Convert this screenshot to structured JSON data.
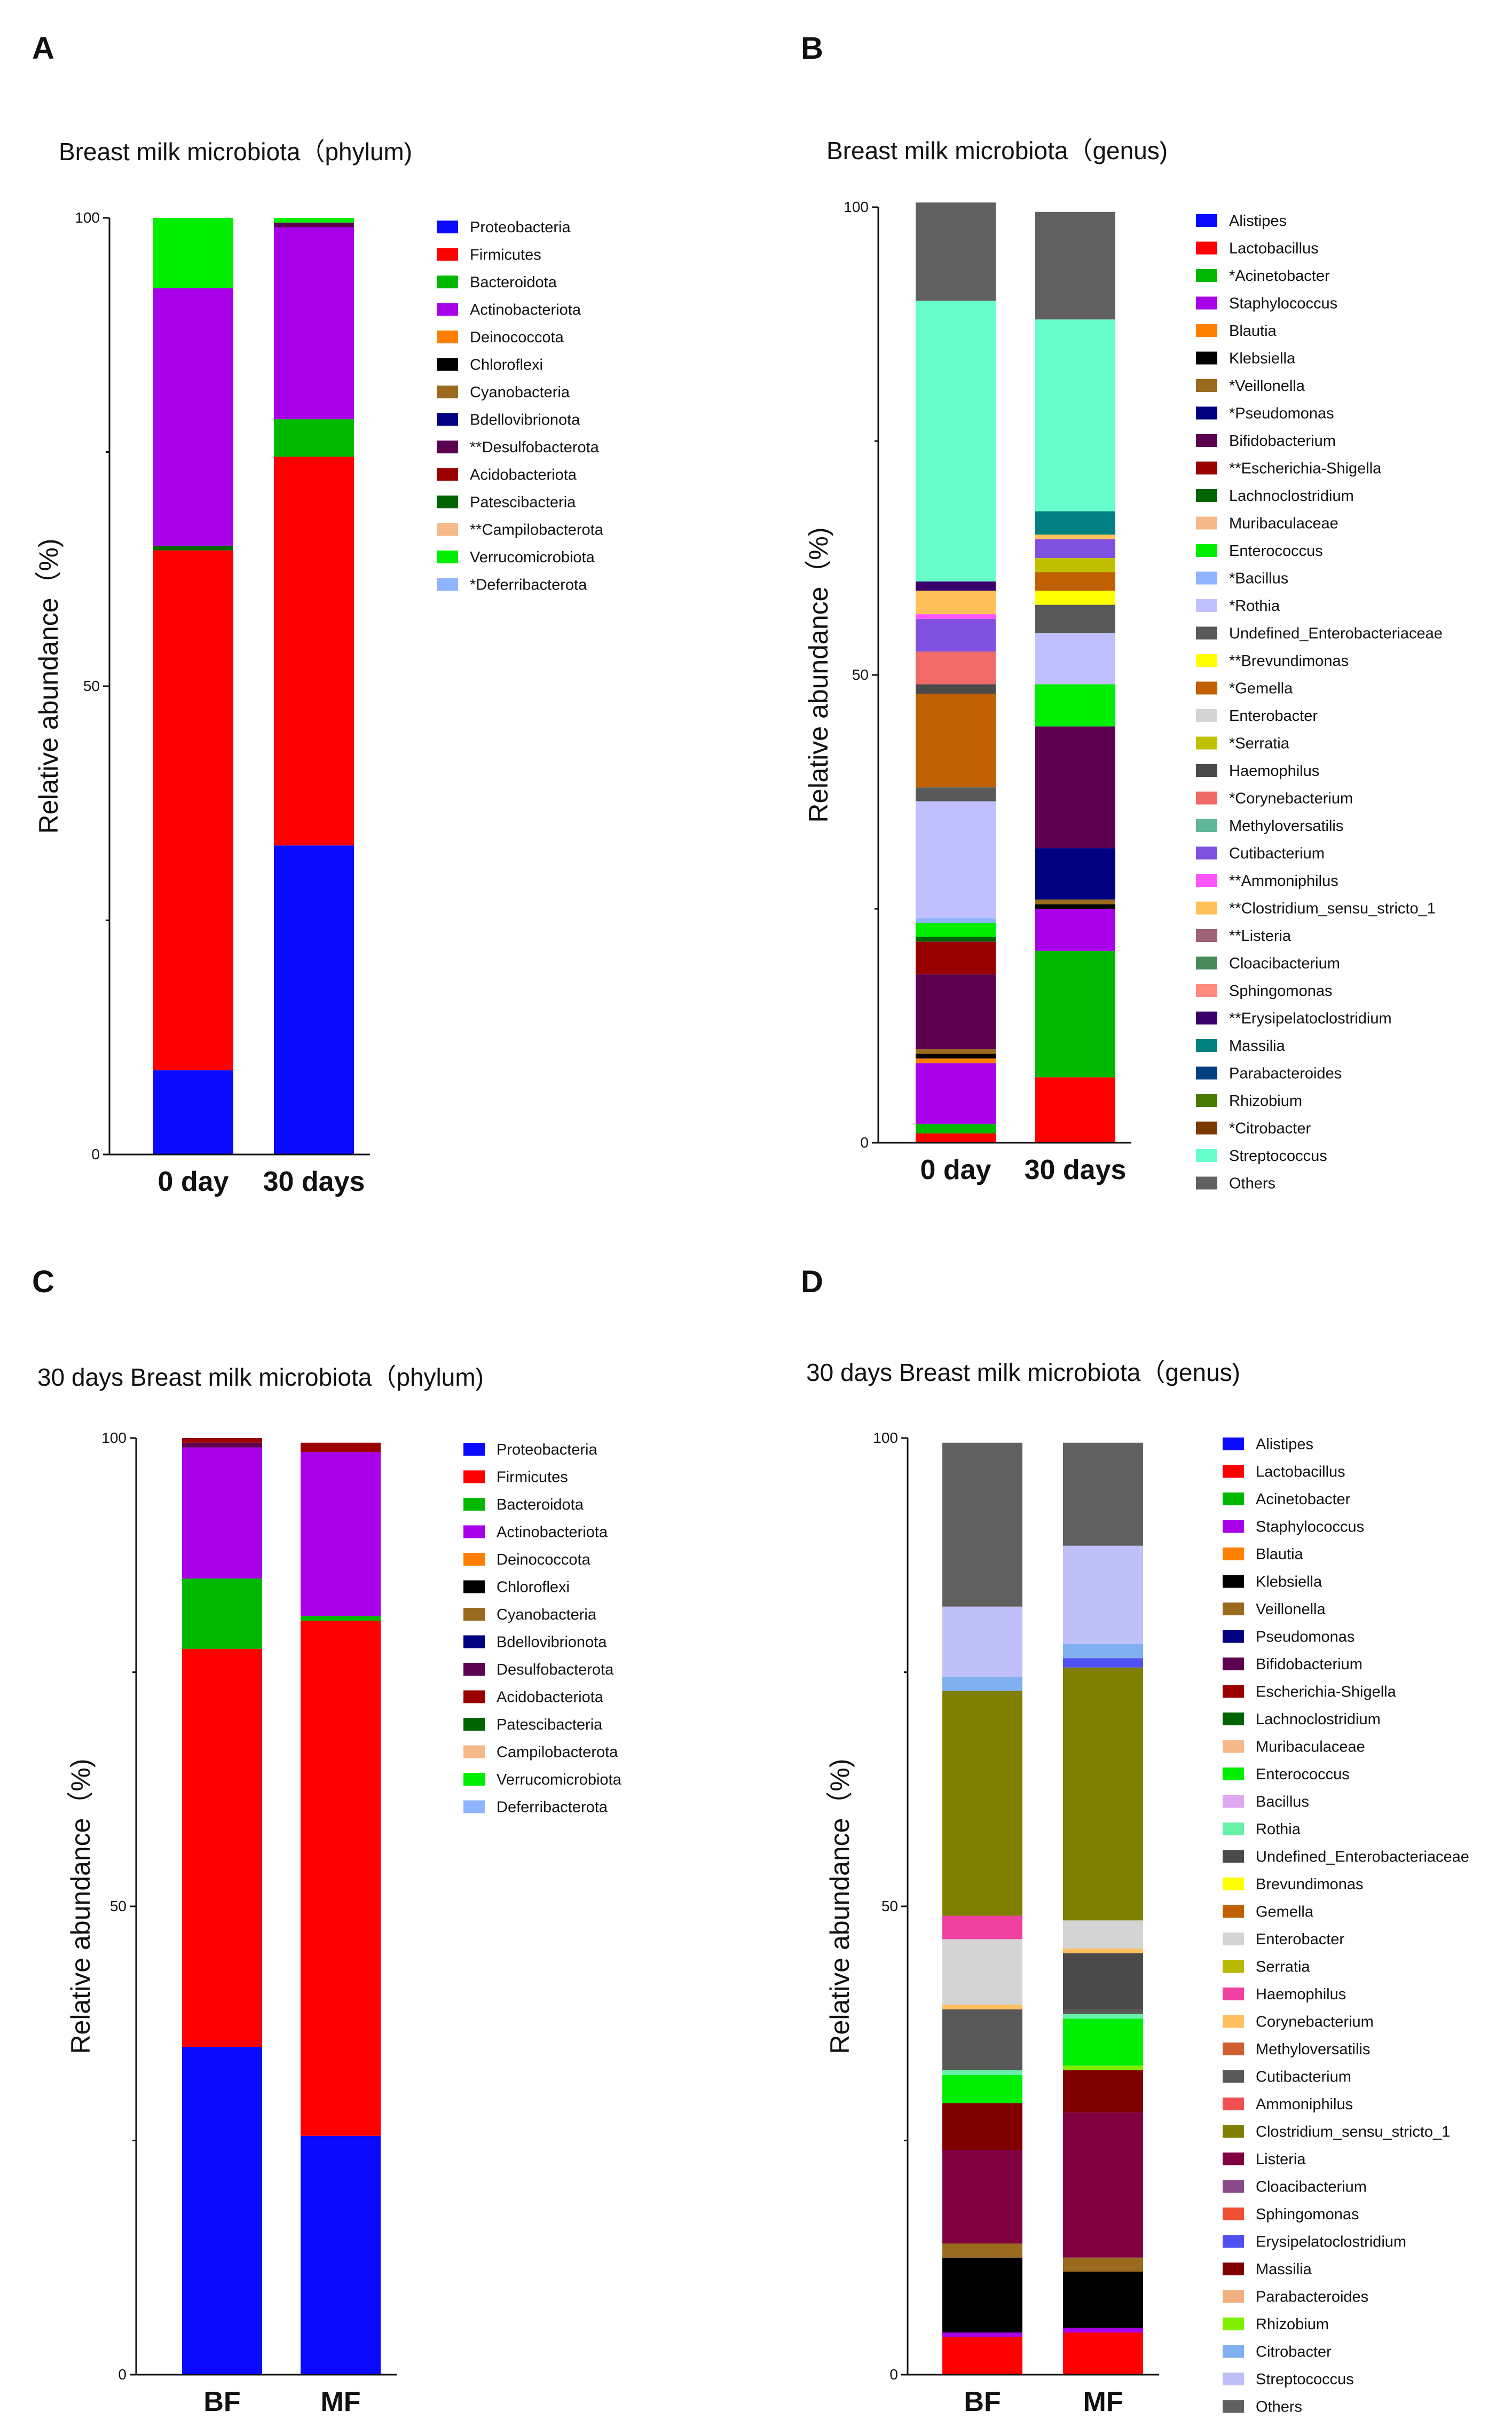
{
  "colors": {
    "Proteobacteria": "#0a0aff",
    "Firmicutes": "#ff0000",
    "Bacteroidota": "#00b800",
    "Actinobacteriota": "#a800e8",
    "Deinococcota": "#ff8000",
    "Chloroflexi": "#000000",
    "Cyanobacteria": "#9a6a1e",
    "Bdellovibrionota": "#000080",
    "Desulfobacterota": "#5c0050",
    "Acidobacteriota": "#9a0000",
    "Patescibacteria": "#006400",
    "Campilobacterota": "#f5b98a",
    "Verrucomicrobiota": "#00ee00",
    "Deferribacterota": "#8fb3ff",
    "Alistipes": "#0a0aff",
    "Lactobacillus": "#ff0000",
    "Acinetobacter": "#00b800",
    "Staphylococcus": "#a800e8",
    "Blautia": "#ff8000",
    "Klebsiella": "#000000",
    "Veillonella": "#9a6a1e",
    "Pseudomonas": "#000080",
    "Bifidobacterium": "#5c0050",
    "Escherichia-Shigella": "#9a0000",
    "Lachnoclostridium": "#006400",
    "Muribaculaceae": "#f5b98a",
    "Enterococcus": "#00ee00",
    "Bacillus": "#8fb3ff",
    "Rothia": "#c0c0ff",
    "Undefined_Enterobacteriaceae": "#595959",
    "Brevundimonas": "#ffff00",
    "Gemella": "#c06000",
    "Enterobacter": "#d4d4d4",
    "Serratia": "#c0c000",
    "Haemophilus": "#4a4a4a",
    "Corynebacterium": "#f06a6a",
    "Methyloversatilis": "#5fb89a",
    "Cutibacterium": "#8050e0",
    "Ammoniphilus": "#ff55ff",
    "Clostridium_sensu_stricto_1": "#ffc25a",
    "Listeria": "#a06078",
    "Cloacibacterium": "#4a8a5a",
    "Sphingomonas": "#ff8a80",
    "Erysipelatoclostridium": "#3a006a",
    "Massilia": "#008080",
    "Parabacteroides": "#004080",
    "Rhizobium": "#4a7a00",
    "Citrobacter": "#7a3a00",
    "Streptococcus": "#66ffcc",
    "Others": "#606060",
    "D_Bacillus": "#e0a8f0",
    "D_Rothia": "#66f0a8",
    "D_Undefined_Enterobacteriaceae": "#4a4a4a",
    "D_Serratia": "#b8b800",
    "D_Haemophilus": "#f040a0",
    "D_Corynebacterium": "#ffc060",
    "D_Methyloversatilis": "#d06030",
    "D_Cutibacterium": "#585858",
    "D_Ammoniphilus": "#f05050",
    "D_Clostridium_sensu_stricto_1": "#808000",
    "D_Listeria": "#800040",
    "D_Cloacibacterium": "#8a4a8a",
    "D_Sphingomonas": "#f05030",
    "D_Erysipelatoclostridium": "#5050f0",
    "D_Massilia": "#800000",
    "D_Parabacteroides": "#f0b080",
    "D_Rhizobium": "#80f000",
    "D_Citrobacter": "#80b0f0",
    "D_Streptococcus": "#c0c0f8"
  },
  "chart_data": [
    {
      "panel": "A",
      "type": "bar",
      "stacked": true,
      "title": "Breast milk microbiota（phylum)",
      "ylabel": "Relative abundance（%)",
      "xlabel": "",
      "ylim": [
        0,
        100
      ],
      "yticks": [
        0,
        50,
        100
      ],
      "categories": [
        "0 day",
        "30 days"
      ],
      "series": [
        {
          "name": "Proteobacteria",
          "label": "Proteobacteria",
          "color_key": "Proteobacteria",
          "values": [
            9,
            33
          ]
        },
        {
          "name": "Firmicutes",
          "label": "Firmicutes",
          "color_key": "Firmicutes",
          "values": [
            55.5,
            41.5
          ]
        },
        {
          "name": "Patescibacteria",
          "label": "Patescibacteria",
          "color_key": "Patescibacteria",
          "values": [
            0.5,
            0
          ]
        },
        {
          "name": "Bacteroidota",
          "label": "Bacteroidota",
          "color_key": "Bacteroidota",
          "values": [
            0,
            4
          ]
        },
        {
          "name": "Actinobacteriota",
          "label": "Actinobacteriota",
          "color_key": "Actinobacteriota",
          "values": [
            27.5,
            20.5
          ]
        },
        {
          "name": "Desulfobacterota",
          "label": "**Desulfobacterota",
          "color_key": "Desulfobacterota",
          "values": [
            0,
            0.5
          ]
        },
        {
          "name": "Verrucomicrobiota",
          "label": "Verrucomicrobiota",
          "color_key": "Verrucomicrobiota",
          "values": [
            7.5,
            0.5
          ]
        }
      ],
      "legend": [
        "Proteobacteria",
        "Firmicutes",
        "Bacteroidota",
        "Actinobacteriota",
        "Deinococcota",
        "Chloroflexi",
        "Cyanobacteria",
        "Bdellovibrionota",
        "**Desulfobacterota",
        "Acidobacteriota",
        "Patescibacteria",
        "**Campilobacterota",
        "Verrucomicrobiota",
        "*Deferribacterota"
      ],
      "legend_keys": [
        "Proteobacteria",
        "Firmicutes",
        "Bacteroidota",
        "Actinobacteriota",
        "Deinococcota",
        "Chloroflexi",
        "Cyanobacteria",
        "Bdellovibrionota",
        "Desulfobacterota",
        "Acidobacteriota",
        "Patescibacteria",
        "Campilobacterota",
        "Verrucomicrobiota",
        "Deferribacterota"
      ]
    },
    {
      "panel": "B",
      "type": "bar",
      "stacked": true,
      "title": "Breast milk microbiota（genus)",
      "ylabel": "Relative abundance（%)",
      "xlabel": "",
      "ylim": [
        0,
        100
      ],
      "yticks": [
        0,
        50,
        100
      ],
      "categories": [
        "0 day",
        "30 days"
      ],
      "series": [
        {
          "name": "Lactobacillus",
          "color_key": "Lactobacillus",
          "values": [
            1,
            7
          ]
        },
        {
          "name": "Acinetobacter",
          "color_key": "Acinetobacter",
          "values": [
            1,
            13.5
          ]
        },
        {
          "name": "Staphylococcus",
          "color_key": "Staphylococcus",
          "values": [
            6.5,
            4.5
          ]
        },
        {
          "name": "Blautia",
          "color_key": "Blautia",
          "values": [
            0.5,
            0
          ]
        },
        {
          "name": "Klebsiella",
          "color_key": "Klebsiella",
          "values": [
            0.5,
            0.5
          ]
        },
        {
          "name": "Veillonella",
          "color_key": "Veillonella",
          "values": [
            0.5,
            0.5
          ]
        },
        {
          "name": "Pseudomonas",
          "color_key": "Pseudomonas",
          "values": [
            0,
            5.5
          ]
        },
        {
          "name": "Bifidobacterium",
          "color_key": "Bifidobacterium",
          "values": [
            8,
            13
          ]
        },
        {
          "name": "Escherichia-Shigella",
          "color_key": "Escherichia-Shigella",
          "values": [
            3.5,
            0
          ]
        },
        {
          "name": "Lachnoclostridium",
          "color_key": "Lachnoclostridium",
          "values": [
            0.5,
            0
          ]
        },
        {
          "name": "Enterococcus",
          "color_key": "Enterococcus",
          "values": [
            1.5,
            4.5
          ]
        },
        {
          "name": "Bacillus",
          "color_key": "Bacillus",
          "values": [
            0.5,
            0
          ]
        },
        {
          "name": "Rothia",
          "color_key": "Rothia",
          "values": [
            12.5,
            5.5
          ]
        },
        {
          "name": "Undefined_Enterobacteriaceae",
          "color_key": "Undefined_Enterobacteriaceae",
          "values": [
            1.5,
            3
          ]
        },
        {
          "name": "Brevundimonas",
          "color_key": "Brevundimonas",
          "values": [
            0,
            1.5
          ]
        },
        {
          "name": "Gemella",
          "color_key": "Gemella",
          "values": [
            10,
            2
          ]
        },
        {
          "name": "Serratia",
          "color_key": "Serratia",
          "values": [
            0,
            1.5
          ]
        },
        {
          "name": "Haemophilus",
          "color_key": "Haemophilus",
          "values": [
            1,
            0
          ]
        },
        {
          "name": "Corynebacterium",
          "color_key": "Corynebacterium",
          "values": [
            3.5,
            0
          ]
        },
        {
          "name": "Cutibacterium",
          "color_key": "Cutibacterium",
          "values": [
            3.5,
            2
          ]
        },
        {
          "name": "Ammoniphilus",
          "color_key": "Ammoniphilus",
          "values": [
            0.5,
            0
          ]
        },
        {
          "name": "Clostridium_sensu_stricto_1",
          "color_key": "Clostridium_sensu_stricto_1",
          "values": [
            2.5,
            0.5
          ]
        },
        {
          "name": "Erysipelatoclostridium",
          "color_key": "Erysipelatoclostridium",
          "values": [
            1,
            0
          ]
        },
        {
          "name": "Massilia",
          "color_key": "Massilia",
          "values": [
            0,
            2.5
          ]
        },
        {
          "name": "Streptococcus",
          "color_key": "Streptococcus",
          "values": [
            30,
            20.5
          ]
        },
        {
          "name": "Others",
          "color_key": "Others",
          "values": [
            10.5,
            11.5
          ]
        }
      ],
      "legend": [
        "Alistipes",
        "Lactobacillus",
        "*Acinetobacter",
        "Staphylococcus",
        "Blautia",
        "Klebsiella",
        "*Veillonella",
        "*Pseudomonas",
        "Bifidobacterium",
        "**Escherichia-Shigella",
        "Lachnoclostridium",
        "Muribaculaceae",
        "Enterococcus",
        "*Bacillus",
        "*Rothia",
        "Undefined_Enterobacteriaceae",
        "**Brevundimonas",
        "*Gemella",
        "Enterobacter",
        "*Serratia",
        "Haemophilus",
        "*Corynebacterium",
        "Methyloversatilis",
        "Cutibacterium",
        "**Ammoniphilus",
        "**Clostridium_sensu_stricto_1",
        "**Listeria",
        "Cloacibacterium",
        "Sphingomonas",
        "**Erysipelatoclostridium",
        "Massilia",
        "Parabacteroides",
        "Rhizobium",
        "*Citrobacter",
        "Streptococcus",
        "Others"
      ],
      "legend_keys": [
        "Alistipes",
        "Lactobacillus",
        "Acinetobacter",
        "Staphylococcus",
        "Blautia",
        "Klebsiella",
        "Veillonella",
        "Pseudomonas",
        "Bifidobacterium",
        "Escherichia-Shigella",
        "Lachnoclostridium",
        "Muribaculaceae",
        "Enterococcus",
        "Bacillus",
        "Rothia",
        "Undefined_Enterobacteriaceae",
        "Brevundimonas",
        "Gemella",
        "Enterobacter",
        "Serratia",
        "Haemophilus",
        "Corynebacterium",
        "Methyloversatilis",
        "Cutibacterium",
        "Ammoniphilus",
        "Clostridium_sensu_stricto_1",
        "Listeria",
        "Cloacibacterium",
        "Sphingomonas",
        "Erysipelatoclostridium",
        "Massilia",
        "Parabacteroides",
        "Rhizobium",
        "Citrobacter",
        "Streptococcus",
        "Others"
      ]
    },
    {
      "panel": "C",
      "type": "bar",
      "stacked": true,
      "title": "30 days Breast milk microbiota（phylum)",
      "ylabel": "Relative abundance（%)",
      "xlabel": "",
      "ylim": [
        0,
        100
      ],
      "yticks": [
        0,
        50,
        100
      ],
      "categories": [
        "BF",
        "MF"
      ],
      "series": [
        {
          "name": "Proteobacteria",
          "color_key": "Proteobacteria",
          "values": [
            35,
            25.5
          ]
        },
        {
          "name": "Firmicutes",
          "color_key": "Firmicutes",
          "values": [
            42.5,
            55
          ]
        },
        {
          "name": "Bacteroidota",
          "color_key": "Bacteroidota",
          "values": [
            7.5,
            0.5
          ]
        },
        {
          "name": "Actinobacteriota",
          "color_key": "Actinobacteriota",
          "values": [
            14,
            17.5
          ]
        },
        {
          "name": "Desulfobacterota",
          "color_key": "Desulfobacterota",
          "values": [
            0.5,
            0
          ]
        },
        {
          "name": "Acidobacteriota",
          "color_key": "Acidobacteriota",
          "values": [
            0.5,
            1
          ]
        }
      ],
      "legend": [
        "Proteobacteria",
        "Firmicutes",
        "Bacteroidota",
        "Actinobacteriota",
        "Deinococcota",
        "Chloroflexi",
        "Cyanobacteria",
        "Bdellovibrionota",
        "Desulfobacterota",
        "Acidobacteriota",
        "Patescibacteria",
        "Campilobacterota",
        "Verrucomicrobiota",
        "Deferribacterota"
      ],
      "legend_keys": [
        "Proteobacteria",
        "Firmicutes",
        "Bacteroidota",
        "Actinobacteriota",
        "Deinococcota",
        "Chloroflexi",
        "Cyanobacteria",
        "Bdellovibrionota",
        "Desulfobacterota",
        "Acidobacteriota",
        "Patescibacteria",
        "Campilobacterota",
        "Verrucomicrobiota",
        "Deferribacterota"
      ]
    },
    {
      "panel": "D",
      "type": "bar",
      "stacked": true,
      "title": "30 days Breast milk microbiota（genus)",
      "ylabel": "Relative abundance（%)",
      "xlabel": "",
      "ylim": [
        0,
        100
      ],
      "yticks": [
        0,
        50,
        100
      ],
      "categories": [
        "BF",
        "MF"
      ],
      "series": [
        {
          "name": "Lactobacillus",
          "color_key": "Lactobacillus",
          "values": [
            4,
            4.5
          ]
        },
        {
          "name": "Staphylococcus",
          "color_key": "Staphylococcus",
          "values": [
            0.5,
            0.5
          ]
        },
        {
          "name": "Klebsiella",
          "color_key": "Klebsiella",
          "values": [
            8,
            6
          ]
        },
        {
          "name": "Veillonella",
          "color_key": "Veillonella",
          "values": [
            1.5,
            1.5
          ]
        },
        {
          "name": "Listeria",
          "color_key": "D_Listeria",
          "values": [
            10,
            15.5
          ]
        },
        {
          "name": "Massilia",
          "color_key": "D_Massilia",
          "values": [
            5,
            4.5
          ]
        },
        {
          "name": "Rhizobium",
          "color_key": "D_Rhizobium",
          "values": [
            0,
            0.5
          ]
        },
        {
          "name": "Enterococcus",
          "color_key": "Enterococcus",
          "values": [
            3,
            5
          ]
        },
        {
          "name": "Rothia",
          "color_key": "D_Rothia",
          "values": [
            0.5,
            0.5
          ]
        },
        {
          "name": "Cutibacterium",
          "color_key": "D_Cutibacterium",
          "values": [
            6.5,
            0.5
          ]
        },
        {
          "name": "Undefined_Enterobacteriaceae",
          "color_key": "D_Undefined_Enterobacteriaceae",
          "values": [
            0,
            6
          ]
        },
        {
          "name": "Corynebacterium",
          "color_key": "D_Corynebacterium",
          "values": [
            0.5,
            0.5
          ]
        },
        {
          "name": "Enterobacter",
          "color_key": "Enterobacter",
          "values": [
            7,
            3
          ]
        },
        {
          "name": "Haemophilus",
          "color_key": "D_Haemophilus",
          "values": [
            2.5,
            0
          ]
        },
        {
          "name": "Clostridium_sensu_stricto_1",
          "color_key": "D_Clostridium_sensu_stricto_1",
          "values": [
            24,
            27
          ]
        },
        {
          "name": "Erysipelatoclostridium",
          "color_key": "D_Erysipelatoclostridium",
          "values": [
            0,
            1
          ]
        },
        {
          "name": "Citrobacter",
          "color_key": "D_Citrobacter",
          "values": [
            1.5,
            1.5
          ]
        },
        {
          "name": "Streptococcus",
          "color_key": "D_Streptococcus",
          "values": [
            7.5,
            10.5
          ]
        },
        {
          "name": "Others",
          "color_key": "Others",
          "values": [
            17.5,
            11
          ]
        }
      ],
      "legend": [
        "Alistipes",
        "Lactobacillus",
        "Acinetobacter",
        "Staphylococcus",
        "Blautia",
        "Klebsiella",
        "Veillonella",
        "Pseudomonas",
        "Bifidobacterium",
        "Escherichia-Shigella",
        "Lachnoclostridium",
        "Muribaculaceae",
        "Enterococcus",
        "Bacillus",
        "Rothia",
        "Undefined_Enterobacteriaceae",
        "Brevundimonas",
        "Gemella",
        "Enterobacter",
        "Serratia",
        "Haemophilus",
        "Corynebacterium",
        "Methyloversatilis",
        "Cutibacterium",
        "Ammoniphilus",
        "Clostridium_sensu_stricto_1",
        "Listeria",
        "Cloacibacterium",
        "Sphingomonas",
        "Erysipelatoclostridium",
        "Massilia",
        "Parabacteroides",
        "Rhizobium",
        "Citrobacter",
        "Streptococcus",
        "Others"
      ],
      "legend_keys": [
        "Alistipes",
        "Lactobacillus",
        "Acinetobacter",
        "Staphylococcus",
        "Blautia",
        "Klebsiella",
        "Veillonella",
        "Pseudomonas",
        "Bifidobacterium",
        "Escherichia-Shigella",
        "Lachnoclostridium",
        "Muribaculaceae",
        "Enterococcus",
        "D_Bacillus",
        "D_Rothia",
        "D_Undefined_Enterobacteriaceae",
        "Brevundimonas",
        "Gemella",
        "Enterobacter",
        "D_Serratia",
        "D_Haemophilus",
        "D_Corynebacterium",
        "D_Methyloversatilis",
        "D_Cutibacterium",
        "D_Ammoniphilus",
        "D_Clostridium_sensu_stricto_1",
        "D_Listeria",
        "D_Cloacibacterium",
        "D_Sphingomonas",
        "D_Erysipelatoclostridium",
        "D_Massilia",
        "D_Parabacteroides",
        "D_Rhizobium",
        "D_Citrobacter",
        "D_Streptococcus",
        "Others"
      ]
    }
  ]
}
